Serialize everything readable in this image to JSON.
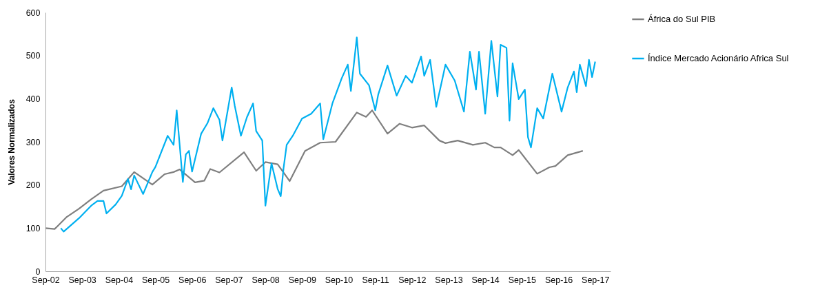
{
  "chart_data": {
    "type": "line",
    "ylabel": "Valores Normalizados",
    "xlim": [
      "2002-09",
      "2018-02"
    ],
    "xticks": [
      {
        "value": "2002-09",
        "label": "Sep-02"
      },
      {
        "value": "2003-09",
        "label": "Sep-03"
      },
      {
        "value": "2004-09",
        "label": "Sep-04"
      },
      {
        "value": "2005-09",
        "label": "Sep-05"
      },
      {
        "value": "2006-09",
        "label": "Sep-06"
      },
      {
        "value": "2007-09",
        "label": "Sep-07"
      },
      {
        "value": "2008-09",
        "label": "Sep-08"
      },
      {
        "value": "2009-09",
        "label": "Sep-09"
      },
      {
        "value": "2010-09",
        "label": "Sep-10"
      },
      {
        "value": "2011-09",
        "label": "Sep-11"
      },
      {
        "value": "2012-09",
        "label": "Sep-12"
      },
      {
        "value": "2013-09",
        "label": "Sep-13"
      },
      {
        "value": "2014-09",
        "label": "Sep-14"
      },
      {
        "value": "2015-09",
        "label": "Sep-15"
      },
      {
        "value": "2016-09",
        "label": "Sep-16"
      },
      {
        "value": "2017-09",
        "label": "Sep-17"
      }
    ],
    "ylim": [
      0,
      600
    ],
    "yticks": [
      0,
      100,
      200,
      300,
      400,
      500,
      600
    ],
    "grid": false,
    "legend": "right",
    "marker": "none",
    "line_style": "solid",
    "series": [
      {
        "name": "África do Sul PIB",
        "color": "#7f7f7f",
        "x": [
          "2002-09",
          "2002-12",
          "2003-01",
          "2003-04",
          "2003-08",
          "2003-12",
          "2004-04",
          "2004-10",
          "2005-02",
          "2005-08",
          "2005-12",
          "2006-03",
          "2006-05",
          "2006-10",
          "2007-01",
          "2007-03",
          "2007-06",
          "2008-02",
          "2008-06",
          "2008-09",
          "2009-01",
          "2009-05",
          "2009-10",
          "2010-03",
          "2010-08",
          "2011-03",
          "2011-06",
          "2011-08",
          "2012-01",
          "2012-05",
          "2012-09",
          "2013-01",
          "2013-06",
          "2013-08",
          "2013-12",
          "2014-05",
          "2014-09",
          "2014-12",
          "2015-02",
          "2015-06",
          "2015-08",
          "2016-02",
          "2016-06",
          "2016-08",
          "2016-12",
          "2017-05"
        ],
        "values": [
          100,
          98,
          105,
          126,
          145,
          167,
          187,
          197,
          230,
          201,
          225,
          230,
          236,
          206,
          210,
          237,
          229,
          276,
          233,
          253,
          248,
          209,
          279,
          298,
          300,
          368,
          358,
          373,
          319,
          342,
          333,
          338,
          303,
          297,
          303,
          293,
          298,
          287,
          287,
          269,
          281,
          226,
          241,
          244,
          269,
          279
        ]
      },
      {
        "name": "Índice Mercado Acionário Africa Sul",
        "color": "#00b0f0",
        "x": [
          "2003-02",
          "2003-03",
          "2003-08",
          "2003-12",
          "2004-02",
          "2004-04",
          "2004-05",
          "2004-08",
          "2004-10",
          "2004-12",
          "2005-01",
          "2005-02",
          "2005-05",
          "2005-08",
          "2005-09",
          "2006-01",
          "2006-03",
          "2006-04",
          "2006-06",
          "2006-07",
          "2006-08",
          "2006-09",
          "2006-12",
          "2007-02",
          "2007-04",
          "2007-06",
          "2007-07",
          "2007-10",
          "2007-11",
          "2008-01",
          "2008-03",
          "2008-05",
          "2008-06",
          "2008-08",
          "2008-09",
          "2008-11",
          "2009-01",
          "2009-02",
          "2009-03",
          "2009-04",
          "2009-06",
          "2009-09",
          "2009-12",
          "2010-03",
          "2010-04",
          "2010-07",
          "2010-10",
          "2010-12",
          "2011-01",
          "2011-03",
          "2011-04",
          "2011-07",
          "2011-09",
          "2011-10",
          "2012-01",
          "2012-04",
          "2012-07",
          "2012-09",
          "2012-12",
          "2013-01",
          "2013-03",
          "2013-05",
          "2013-08",
          "2013-11",
          "2014-02",
          "2014-04",
          "2014-06",
          "2014-07",
          "2014-09",
          "2014-11",
          "2015-01",
          "2015-02",
          "2015-04",
          "2015-05",
          "2015-06",
          "2015-08",
          "2015-10",
          "2015-11",
          "2015-12",
          "2016-02",
          "2016-04",
          "2016-07",
          "2016-10",
          "2016-12",
          "2017-02",
          "2017-03",
          "2017-04",
          "2017-06",
          "2017-07",
          "2017-08",
          "2017-09"
        ],
        "values": [
          100,
          92,
          123,
          152,
          163,
          163,
          134,
          155,
          175,
          214,
          190,
          222,
          179,
          230,
          242,
          314,
          293,
          373,
          207,
          271,
          279,
          231,
          319,
          343,
          378,
          351,
          303,
          426,
          383,
          314,
          357,
          389,
          325,
          303,
          152,
          250,
          191,
          174,
          239,
          293,
          314,
          354,
          365,
          389,
          306,
          389,
          447,
          479,
          418,
          542,
          458,
          431,
          373,
          410,
          477,
          407,
          453,
          437,
          498,
          453,
          490,
          381,
          479,
          442,
          370,
          509,
          421,
          509,
          365,
          534,
          405,
          525,
          518,
          349,
          482,
          399,
          421,
          311,
          287,
          378,
          354,
          458,
          370,
          426,
          463,
          415,
          479,
          429,
          490,
          450,
          486
        ]
      }
    ]
  }
}
